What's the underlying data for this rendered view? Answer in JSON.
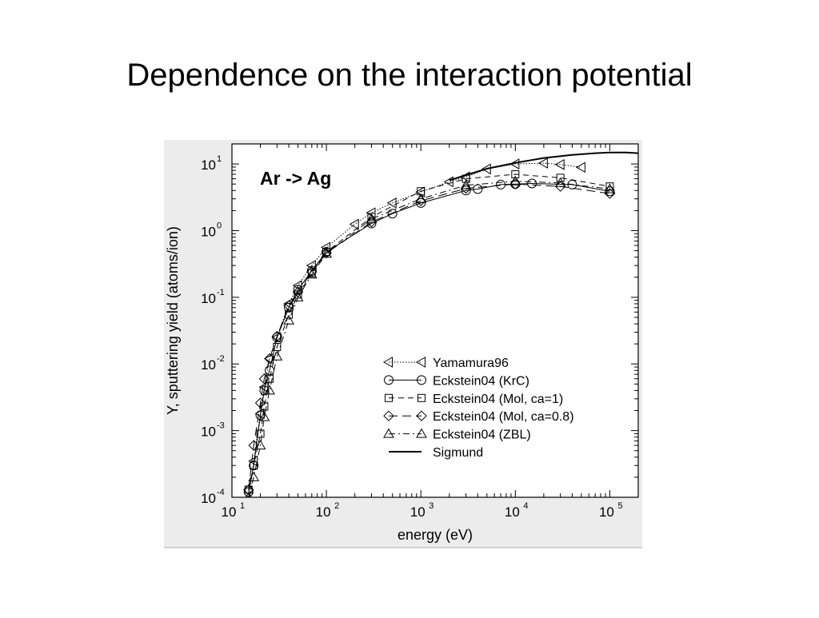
{
  "slide": {
    "title": "Dependence on the interaction potential"
  },
  "chart_data": {
    "type": "line",
    "annotation": "Ar -> Ag",
    "xlabel": "energy (eV)",
    "ylabel": "Y, sputtering yield (atoms/ion)",
    "x_scale": "log",
    "y_scale": "log",
    "xlim": [
      10,
      200000
    ],
    "ylim": [
      0.0001,
      20
    ],
    "x_ticks": [
      {
        "base": "10",
        "exp": "1",
        "value": 10
      },
      {
        "base": "10",
        "exp": "2",
        "value": 100
      },
      {
        "base": "10",
        "exp": "3",
        "value": 1000
      },
      {
        "base": "10",
        "exp": "4",
        "value": 10000
      },
      {
        "base": "10",
        "exp": "5",
        "value": 100000
      }
    ],
    "y_ticks": [
      {
        "base": "10",
        "exp": "1",
        "value": 10
      },
      {
        "base": "10",
        "exp": "0",
        "value": 1
      },
      {
        "base": "10",
        "exp": "-1",
        "value": 0.1
      },
      {
        "base": "10",
        "exp": "-2",
        "value": 0.01
      },
      {
        "base": "10",
        "exp": "-3",
        "value": 0.001
      },
      {
        "base": "10",
        "exp": "-4",
        "value": 0.0001
      }
    ],
    "grid": false,
    "legend_position": "bottom-right",
    "series": [
      {
        "name": "Yamamura96",
        "marker": "triangle-left",
        "line": "dotted",
        "linewidth": 1,
        "x": [
          15,
          17,
          20,
          22,
          25,
          30,
          40,
          50,
          70,
          100,
          200,
          300,
          500,
          1000,
          2000,
          3000,
          5000,
          10000,
          20000,
          30000,
          50000
        ],
        "y": [
          8e-05,
          0.00035,
          0.0018,
          0.0045,
          0.012,
          0.025,
          0.08,
          0.15,
          0.3,
          0.56,
          1.25,
          1.85,
          2.6,
          3.8,
          5.4,
          6.4,
          8.4,
          10,
          10.3,
          9.8,
          8.9
        ]
      },
      {
        "name": "Eckstein04 (KrC)",
        "marker": "circle",
        "line": "solid",
        "linewidth": 1,
        "x": [
          15,
          17,
          20,
          22,
          25,
          30,
          40,
          50,
          70,
          100,
          300,
          500,
          1000,
          3000,
          4000,
          7000,
          10000,
          15000,
          40000,
          100000
        ],
        "y": [
          0.00012,
          0.0003,
          0.0017,
          0.004,
          0.008,
          0.025,
          0.07,
          0.13,
          0.25,
          0.48,
          1.28,
          1.8,
          2.6,
          4.0,
          4.2,
          4.9,
          5.0,
          5.1,
          4.9,
          3.9
        ]
      },
      {
        "name": "Eckstein04 (Mol, ca=1)",
        "marker": "square",
        "line": "dashed",
        "linewidth": 1,
        "x": [
          15,
          17,
          20,
          22,
          25,
          30,
          40,
          50,
          70,
          100,
          300,
          1000,
          3000,
          10000,
          30000,
          100000
        ],
        "y": [
          0.00013,
          0.0003,
          0.0009,
          0.0023,
          0.006,
          0.018,
          0.055,
          0.11,
          0.23,
          0.48,
          1.6,
          3.9,
          6.0,
          7.0,
          6.2,
          4.6
        ]
      },
      {
        "name": "Eckstein04 (Mol, ca=0.8)",
        "marker": "diamond",
        "line": "long-dash",
        "linewidth": 1,
        "x": [
          15,
          17,
          20,
          22,
          25,
          30,
          40,
          50,
          70,
          100,
          300,
          1000,
          3000,
          10000,
          30000,
          100000
        ],
        "y": [
          0.00013,
          0.0006,
          0.0026,
          0.006,
          0.012,
          0.026,
          0.075,
          0.12,
          0.24,
          0.46,
          1.35,
          2.8,
          4.3,
          5.0,
          4.6,
          3.6
        ]
      },
      {
        "name": "Eckstein04 (ZBL)",
        "marker": "triangle-up",
        "line": "dash-dot",
        "linewidth": 1,
        "x": [
          15,
          17,
          20,
          22,
          25,
          30,
          40,
          50,
          70,
          100,
          300,
          1000,
          3000,
          10000,
          30000,
          100000
        ],
        "y": [
          0.0001,
          0.0002,
          0.0006,
          0.0016,
          0.004,
          0.013,
          0.045,
          0.1,
          0.22,
          0.45,
          1.5,
          3.0,
          4.8,
          5.5,
          5.2,
          4.2
        ]
      },
      {
        "name": "Sigmund",
        "marker": "none",
        "line": "solid",
        "linewidth": 2,
        "x": [
          2000,
          5000,
          10000,
          20000,
          40000,
          70000,
          100000,
          150000,
          200000
        ],
        "y": [
          5.7,
          8.5,
          10.4,
          12.3,
          13.7,
          14.5,
          14.9,
          14.9,
          14.5
        ]
      }
    ]
  }
}
